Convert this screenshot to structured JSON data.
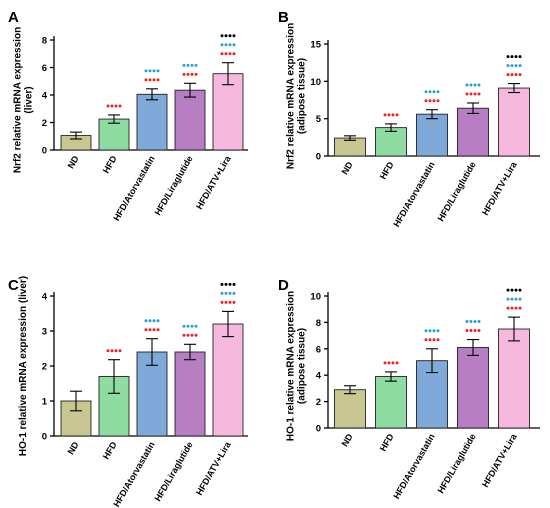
{
  "colors": {
    "ND": "#c9c791",
    "HFD": "#8fdca3",
    "HFD/Atorvastatin": "#7ea9d8",
    "HFD/Liraglutide": "#b77ec4",
    "HFD/ATV+Lira": "#f7b8de",
    "star_red": "#e8232d",
    "star_blue": "#2a9fd6",
    "star_black": "#000000"
  },
  "chart_data": [
    {
      "panel": "A",
      "type": "bar",
      "ylabel": [
        "Nrf2 relative mRNA expression",
        "(liver)"
      ],
      "categories": [
        "ND",
        "HFD",
        "HFD/Atorvastatin",
        "HFD/Liraglutide",
        "HFD/ATV+Lira"
      ],
      "values": [
        1.05,
        2.25,
        4.05,
        4.35,
        5.55
      ],
      "errors": [
        0.25,
        0.3,
        0.4,
        0.5,
        0.8
      ],
      "ylim": [
        0,
        8
      ],
      "yticks": [
        "0",
        "2",
        "4",
        "6",
        "8"
      ],
      "significance": [
        [],
        [
          "red"
        ],
        [
          "blue",
          "red"
        ],
        [
          "blue",
          "red"
        ],
        [
          "black",
          "blue",
          "red"
        ]
      ]
    },
    {
      "panel": "B",
      "type": "bar",
      "ylabel": [
        "Nrf2 relative mRNA expression",
        "(adipose tissue)"
      ],
      "categories": [
        "ND",
        "HFD",
        "HFD/Atorvastatin",
        "HFD/Liraglutide",
        "HFD/ATV+Lira"
      ],
      "values": [
        2.4,
        3.8,
        5.6,
        6.4,
        9.1
      ],
      "errors": [
        0.3,
        0.5,
        0.6,
        0.7,
        0.6
      ],
      "ylim": [
        0,
        15
      ],
      "yticks": [
        "0",
        "5",
        "10",
        "15"
      ],
      "significance": [
        [],
        [
          "red"
        ],
        [
          "blue",
          "red"
        ],
        [
          "blue",
          "red"
        ],
        [
          "black",
          "blue",
          "red"
        ]
      ]
    },
    {
      "panel": "C",
      "type": "bar",
      "ylabel": [
        "HO-1 relative mRNA expression (liver)"
      ],
      "categories": [
        "ND",
        "HFD",
        "HFD/Atorvastatin",
        "HFD/Liraglutide",
        "HFD/ATV+Lira"
      ],
      "values": [
        1.0,
        1.7,
        2.4,
        2.4,
        3.2
      ],
      "errors": [
        0.28,
        0.48,
        0.38,
        0.22,
        0.36
      ],
      "ylim": [
        0,
        4
      ],
      "yticks": [
        "0",
        "1",
        "2",
        "3",
        "4"
      ],
      "significance": [
        [],
        [
          "red"
        ],
        [
          "blue",
          "red"
        ],
        [
          "blue",
          "red"
        ],
        [
          "black",
          "blue",
          "red"
        ]
      ]
    },
    {
      "panel": "D",
      "type": "bar",
      "ylabel": [
        "HO-1 relative mRNA expression",
        "(adipose tissue)"
      ],
      "categories": [
        "ND",
        "HFD",
        "HFD/Atorvastatin",
        "HFD/Liraglutide",
        "HFD/ATV+Lira"
      ],
      "values": [
        2.9,
        3.9,
        5.1,
        6.1,
        7.5
      ],
      "errors": [
        0.3,
        0.35,
        0.9,
        0.6,
        0.9
      ],
      "ylim": [
        0,
        10
      ],
      "yticks": [
        "0",
        "2",
        "4",
        "6",
        "8",
        "10"
      ],
      "significance": [
        [],
        [
          "red"
        ],
        [
          "blue",
          "red"
        ],
        [
          "blue",
          "red"
        ],
        [
          "black",
          "blue",
          "red"
        ]
      ]
    }
  ]
}
